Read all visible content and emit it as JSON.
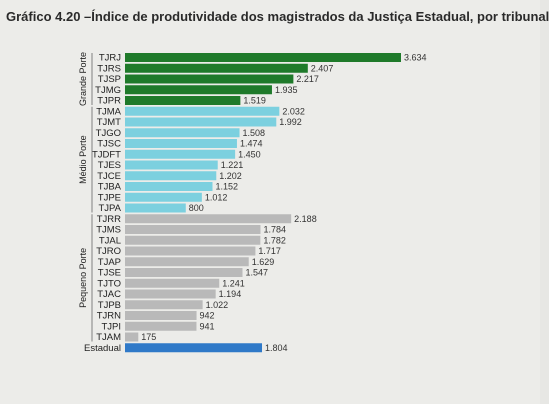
{
  "title": "Gráfico 4.20 –Índice de produtividade dos magistrados da Justiça Estadual, por tribunal",
  "colors": {
    "grande": "#1f7a2a",
    "medio": "#7cd0df",
    "pequeno": "#b9b9b9",
    "estadual": "#2f79c8"
  },
  "chart_data": {
    "type": "bar",
    "orientation": "horizontal",
    "xlim": [
      0,
      3634
    ],
    "grid": false,
    "groups": [
      {
        "name": "Grande Porte",
        "color_key": "grande",
        "categories": [
          "TJRJ",
          "TJRS",
          "TJSP",
          "TJMG",
          "TJPR"
        ],
        "values": [
          3634,
          2407,
          2217,
          1935,
          1519
        ],
        "labels": [
          "3.634",
          "2.407",
          "2.217",
          "1.935",
          "1.519"
        ]
      },
      {
        "name": "Médio Porte",
        "color_key": "medio",
        "categories": [
          "TJMA",
          "TJMT",
          "TJGO",
          "TJSC",
          "TJDFT",
          "TJES",
          "TJCE",
          "TJBA",
          "TJPE",
          "TJPA"
        ],
        "values": [
          2032,
          1992,
          1508,
          1474,
          1450,
          1221,
          1202,
          1152,
          1012,
          800
        ],
        "labels": [
          "2.032",
          "1.992",
          "1.508",
          "1.474",
          "1.450",
          "1.221",
          "1.202",
          "1.152",
          "1.012",
          "800"
        ]
      },
      {
        "name": "Pequeno Porte",
        "color_key": "pequeno",
        "categories": [
          "TJRR",
          "TJMS",
          "TJAL",
          "TJRO",
          "TJAP",
          "TJSE",
          "TJTO",
          "TJAC",
          "TJPB",
          "TJRN",
          "TJPI",
          "TJAM"
        ],
        "values": [
          2188,
          1784,
          1782,
          1717,
          1629,
          1547,
          1241,
          1194,
          1022,
          942,
          941,
          175
        ],
        "labels": [
          "2.188",
          "1.784",
          "1.782",
          "1.717",
          "1.629",
          "1.547",
          "1.241",
          "1.194",
          "1.022",
          "942",
          "941",
          "175"
        ]
      },
      {
        "name": "",
        "color_key": "estadual",
        "categories": [
          "Estadual"
        ],
        "values": [
          1804
        ],
        "labels": [
          "1.804"
        ]
      }
    ]
  }
}
